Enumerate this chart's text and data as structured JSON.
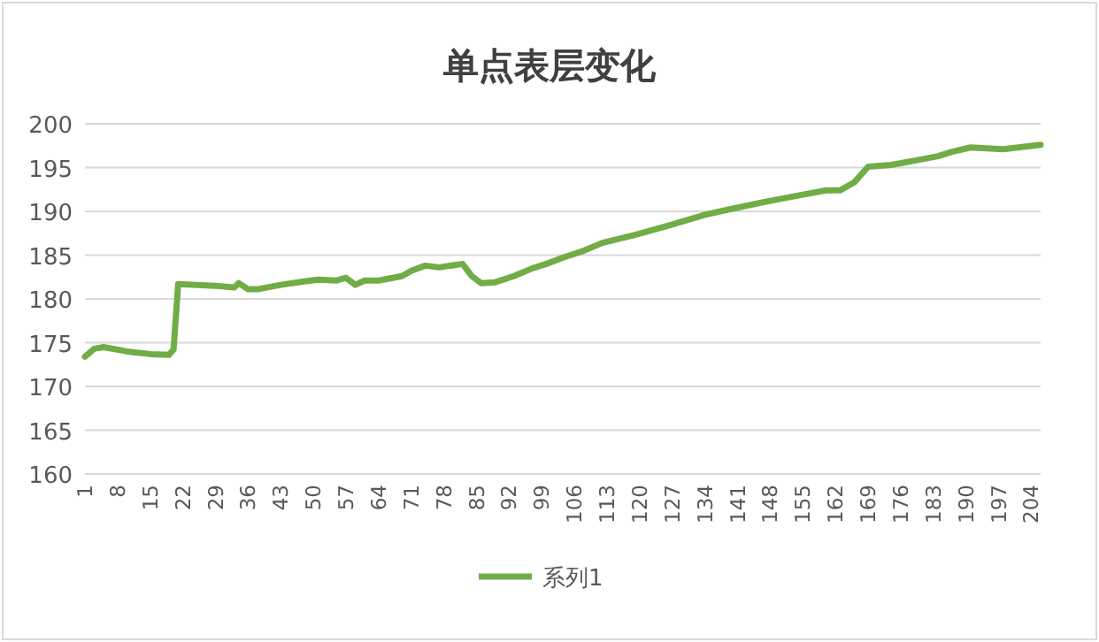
{
  "chart_data": {
    "type": "line",
    "title": "单点表层变化",
    "x": [
      1,
      3,
      5,
      10,
      15,
      19,
      20,
      21,
      25,
      29,
      33,
      34,
      36,
      38,
      43,
      48,
      51,
      55,
      57,
      59,
      61,
      64,
      69,
      71,
      74,
      77,
      82,
      84,
      86,
      89,
      93,
      97,
      100,
      104,
      108,
      112,
      119,
      127,
      134,
      139,
      147,
      155,
      160,
      163,
      166,
      169,
      174,
      179,
      184,
      187,
      191,
      198,
      206
    ],
    "series": [
      {
        "name": "系列1",
        "color": "#70ad47",
        "values": [
          173.4,
          174.3,
          174.5,
          174.0,
          173.7,
          173.6,
          174.2,
          181.7,
          181.6,
          181.5,
          181.3,
          181.8,
          181.1,
          181.1,
          181.6,
          182.0,
          182.2,
          182.1,
          182.4,
          181.6,
          182.1,
          182.1,
          182.6,
          183.2,
          183.8,
          183.6,
          184.0,
          182.6,
          181.8,
          181.9,
          182.6,
          183.5,
          184.0,
          184.8,
          185.5,
          186.4,
          187.3,
          188.5,
          189.6,
          190.2,
          191.1,
          191.9,
          192.4,
          192.4,
          193.3,
          195.1,
          195.3,
          195.8,
          196.3,
          196.8,
          197.3,
          197.1,
          197.6
        ]
      }
    ],
    "xlim": [
      1,
      206
    ],
    "xticks": [
      1,
      8,
      15,
      22,
      29,
      36,
      43,
      50,
      57,
      64,
      71,
      78,
      85,
      92,
      99,
      106,
      113,
      120,
      127,
      134,
      141,
      148,
      155,
      162,
      169,
      176,
      183,
      190,
      197,
      204
    ],
    "ylim": [
      160,
      200
    ],
    "yticks": [
      160,
      165,
      170,
      175,
      180,
      185,
      190,
      195,
      200
    ],
    "grid": "y",
    "legend": "bottom"
  }
}
